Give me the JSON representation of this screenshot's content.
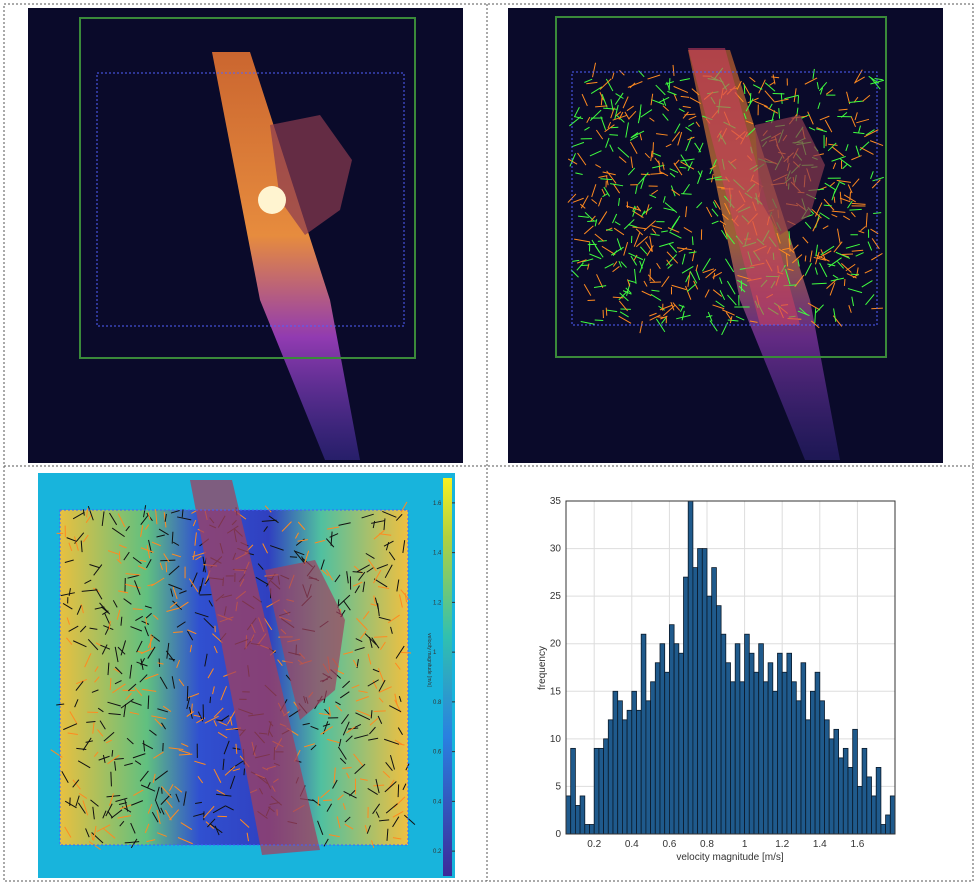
{
  "chart_data": {
    "type": "histogram",
    "xlabel": "velocity magnitude [m/s]",
    "ylabel": "frequency",
    "bins": [
      0.05,
      0.075,
      0.1,
      0.125,
      0.15,
      0.175,
      0.2,
      0.225,
      0.25,
      0.275,
      0.3,
      0.325,
      0.35,
      0.375,
      0.4,
      0.425,
      0.45,
      0.475,
      0.5,
      0.525,
      0.55,
      0.575,
      0.6,
      0.625,
      0.65,
      0.675,
      0.7,
      0.725,
      0.75,
      0.775,
      0.8,
      0.825,
      0.85,
      0.875,
      0.9,
      0.925,
      0.95,
      0.975,
      1,
      1.025,
      1.05,
      1.075,
      1.1,
      1.125,
      1.15,
      1.175,
      1.2,
      1.225,
      1.25,
      1.275,
      1.3,
      1.325,
      1.35,
      1.375,
      1.4,
      1.425,
      1.45,
      1.475,
      1.5,
      1.525,
      1.55,
      1.575,
      1.6,
      1.625,
      1.65,
      1.675,
      1.7,
      1.725,
      1.75,
      1.775,
      1.8
    ],
    "values": [
      4,
      9,
      3,
      4,
      1,
      1,
      9,
      9,
      10,
      12,
      15,
      14,
      12,
      13,
      15,
      13,
      21,
      14,
      16,
      18,
      20,
      17,
      22,
      20,
      19,
      27,
      35,
      28,
      30,
      30,
      25,
      28,
      24,
      21,
      18,
      16,
      20,
      16,
      21,
      19,
      17,
      20,
      16,
      18,
      15,
      19,
      17,
      19,
      16,
      14,
      18,
      12,
      15,
      17,
      14,
      12,
      10,
      11,
      8,
      9,
      7,
      11,
      5,
      9,
      6,
      4,
      7,
      1,
      2,
      4
    ],
    "color": "#1f5a8c",
    "xlim": [
      0.05,
      1.8
    ],
    "ylim": [
      0,
      35
    ],
    "xticks": [
      0.2,
      0.4,
      0.6,
      0.8,
      1,
      1.2,
      1.4,
      1.6
    ],
    "yticks": [
      0,
      5,
      10,
      15,
      20,
      25,
      30,
      35
    ],
    "grid": true
  },
  "colorbar": {
    "label": "velocity magnitude [m/s]",
    "lim": [
      0.1,
      1.7
    ],
    "ticks": [
      0.2,
      0.4,
      0.6,
      0.8,
      1,
      1.2,
      1.4,
      1.6
    ]
  }
}
